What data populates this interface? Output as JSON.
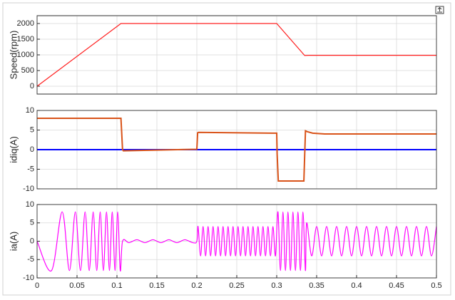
{
  "chart_data": [
    {
      "type": "line",
      "ylabel": "Speed(rpm)",
      "xlim": [
        0,
        0.5
      ],
      "ylim": [
        -250,
        2250
      ],
      "yticks": [
        0,
        500,
        1000,
        1500,
        2000
      ],
      "grid": true,
      "series": [
        {
          "color": "#ff2020",
          "x": [
            0,
            0.105,
            0.3,
            0.335,
            0.34,
            0.5
          ],
          "values": [
            0,
            2000,
            2000,
            980,
            985,
            985
          ]
        }
      ]
    },
    {
      "type": "line",
      "ylabel": "idiq(A)",
      "xlim": [
        0,
        0.5
      ],
      "ylim": [
        -10,
        10
      ],
      "yticks": [
        -10,
        -5,
        0,
        5,
        10
      ],
      "grid": true,
      "series": [
        {
          "color": "#0000ff",
          "x": [
            0,
            0.5
          ],
          "values": [
            0,
            0
          ]
        },
        {
          "color": "#d95319",
          "x": [
            0,
            0.105,
            0.107,
            0.108,
            0.2,
            0.201,
            0.202,
            0.3,
            0.3005,
            0.302,
            0.334,
            0.336,
            0.338,
            0.345,
            0.36,
            0.5
          ],
          "values": [
            8,
            8,
            0,
            -0.3,
            0.1,
            4.3,
            4.4,
            4.2,
            -1,
            -8,
            -8,
            4.8,
            4.6,
            4.2,
            4,
            4
          ]
        }
      ]
    },
    {
      "type": "line",
      "ylabel": "ia(A)",
      "xlim": [
        0,
        0.5
      ],
      "ylim": [
        -10,
        10
      ],
      "yticks": [
        -10,
        -5,
        0,
        5,
        10
      ],
      "grid": true,
      "xticks": [
        0,
        0.05,
        0.1,
        0.15,
        0.2,
        0.25,
        0.3,
        0.35,
        0.4,
        0.45,
        0.5
      ],
      "series": [
        {
          "color": "#ff00ff",
          "x": [
            0,
            0.0181,
            0.0314,
            0.0405,
            0.0479,
            0.0543,
            0.0601,
            0.0653,
            0.0702,
            0.0747,
            0.079,
            0.083,
            0.0869,
            0.0906,
            0.0941,
            0.0976,
            0.1009,
            0.1041,
            0.107,
            0.115,
            0.125,
            0.135,
            0.145,
            0.155,
            0.165,
            0.175,
            0.185,
            0.195,
            0.2,
            0.20156,
            0.20469,
            0.20781,
            0.21094,
            0.21406,
            0.21719,
            0.22031,
            0.22344,
            0.22656,
            0.22969,
            0.23281,
            0.23594,
            0.23906,
            0.24219,
            0.24531,
            0.24844,
            0.25156,
            0.25469,
            0.25781,
            0.26094,
            0.26406,
            0.26719,
            0.27031,
            0.27344,
            0.27656,
            0.27969,
            0.28281,
            0.28594,
            0.28906,
            0.29219,
            0.29531,
            0.29844,
            0.30156,
            0.30469,
            0.30781,
            0.31094,
            0.31406,
            0.31719,
            0.32031,
            0.32344,
            0.32656,
            0.32969,
            0.33281,
            0.33594,
            0.3375,
            0.34375,
            0.35,
            0.35625,
            0.3625,
            0.36875,
            0.375,
            0.38125,
            0.3875,
            0.39375,
            0.4,
            0.40625,
            0.4125,
            0.41875,
            0.425,
            0.43125,
            0.4375,
            0.44375,
            0.45,
            0.45625,
            0.4625,
            0.46875,
            0.475,
            0.48125,
            0.4875,
            0.49375,
            0.5
          ],
          "values": [
            0,
            -8,
            8,
            -8,
            8,
            -8,
            8,
            -8,
            8,
            -8,
            8,
            -8,
            8,
            -8,
            8,
            -8,
            8,
            -8,
            0,
            -0.4,
            0.4,
            -0.4,
            0.4,
            -0.4,
            0.4,
            -0.4,
            0.4,
            -0.4,
            0,
            4,
            -4,
            4,
            -4,
            4,
            -4,
            4,
            -4,
            4,
            -4,
            4,
            -4,
            4,
            -4,
            4,
            -4,
            4,
            -4,
            4,
            -4,
            4,
            -4,
            4,
            -4,
            4,
            -4,
            4,
            -4,
            4,
            -4,
            4,
            -4,
            8,
            -8,
            8,
            -8,
            8,
            -8,
            8,
            -8,
            8,
            -8,
            8,
            -8,
            5,
            -4,
            4,
            -4,
            4,
            -4,
            4,
            -4,
            4,
            -4,
            4,
            -4,
            4,
            -4,
            4,
            -4,
            4,
            -4,
            4,
            -4,
            4,
            -4,
            4,
            -4,
            4,
            -4,
            4
          ]
        }
      ]
    }
  ]
}
